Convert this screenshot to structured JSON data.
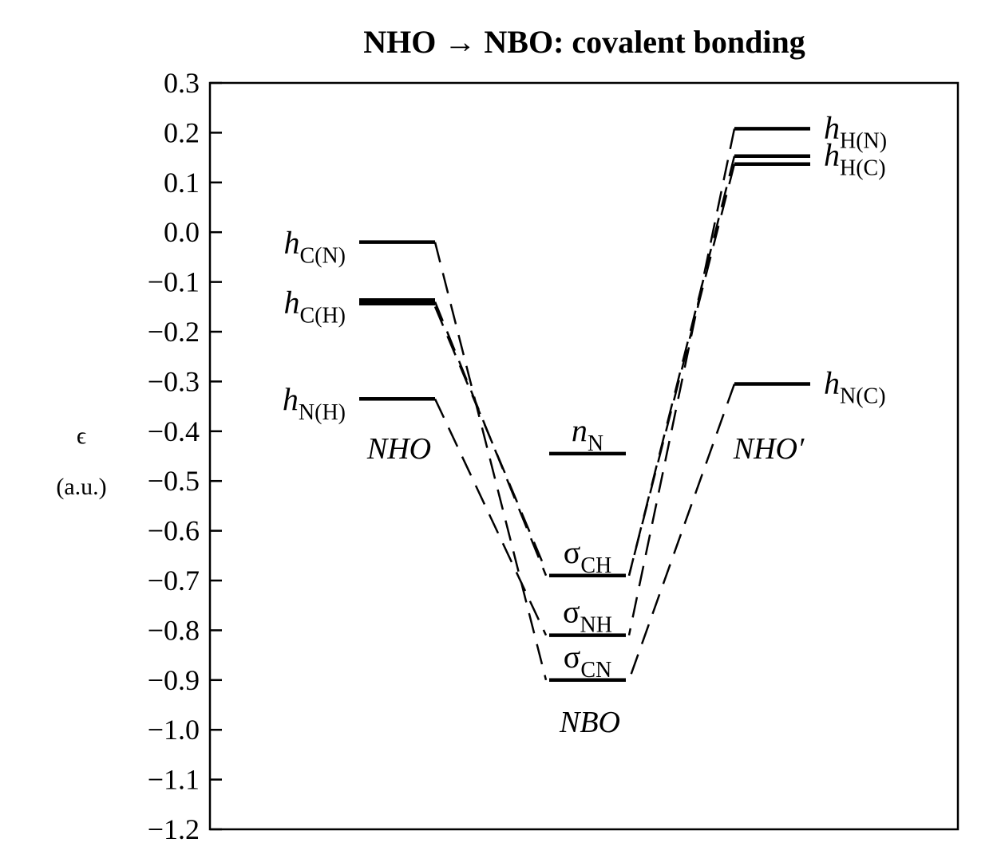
{
  "chart_data": {
    "type": "energy-level-diagram",
    "title": "NHO → NBO: covalent bonding",
    "ylabel_symbol": "ϵ",
    "ylabel_unit": "(a.u.)",
    "ylim": [
      -1.2,
      0.3
    ],
    "y_ticks": [
      0.3,
      0.2,
      0.1,
      0.0,
      -0.1,
      -0.2,
      -0.3,
      -0.4,
      -0.5,
      -0.6,
      -0.7,
      -0.8,
      -0.9,
      -1.0,
      -1.1,
      -1.2
    ],
    "y_tick_labels": [
      "0.3",
      "0.2",
      "0.1",
      "0.0",
      "−0.1",
      "−0.2",
      "−0.3",
      "−0.4",
      "−0.5",
      "−0.6",
      "−0.7",
      "−0.8",
      "−0.9",
      "−1.0",
      "−1.1",
      "−1.2"
    ],
    "columns": [
      {
        "name": "NHO",
        "label": "NHO"
      },
      {
        "name": "NBO",
        "label": "NBO"
      },
      {
        "name": "NHO'",
        "label": "NHO′"
      }
    ],
    "levels": [
      {
        "column": "NHO",
        "symbol": "h",
        "sub": "C(N)",
        "value": -0.02
      },
      {
        "column": "NHO",
        "symbol": "h",
        "sub": "C(H)",
        "value": -0.14,
        "bold": true
      },
      {
        "column": "NHO",
        "symbol": "h",
        "sub": "N(H)",
        "value": -0.335
      },
      {
        "column": "NBO",
        "symbol": "n",
        "sub": "N",
        "value": -0.445
      },
      {
        "column": "NBO",
        "symbol": "σ",
        "sub": "CH",
        "value": -0.69
      },
      {
        "column": "NBO",
        "symbol": "σ",
        "sub": "NH",
        "value": -0.81
      },
      {
        "column": "NBO",
        "symbol": "σ",
        "sub": "CN",
        "value": -0.9
      },
      {
        "column": "NHO'",
        "symbol": "h",
        "sub": "H(N)",
        "value": 0.208
      },
      {
        "column": "NHO'",
        "symbol": "h",
        "sub": "H(C)",
        "value": 0.153
      },
      {
        "column": "NHO'",
        "symbol": "",
        "sub": "",
        "value": 0.137
      },
      {
        "column": "NHO'",
        "symbol": "h",
        "sub": "N(C)",
        "value": -0.305
      }
    ],
    "connectors": [
      {
        "from": "NHO",
        "from_value": -0.02,
        "to": "NBO",
        "to_value": -0.9
      },
      {
        "from": "NHO",
        "from_value": -0.14,
        "to": "NBO",
        "to_value": -0.69
      },
      {
        "from": "NHO",
        "from_value": -0.14,
        "to": "NBO",
        "to_value": -0.69
      },
      {
        "from": "NHO",
        "from_value": -0.335,
        "to": "NBO",
        "to_value": -0.81
      },
      {
        "from": "NHO'",
        "from_value": 0.208,
        "to": "NBO",
        "to_value": -0.81
      },
      {
        "from": "NHO'",
        "from_value": 0.153,
        "to": "NBO",
        "to_value": -0.69
      },
      {
        "from": "NHO'",
        "from_value": 0.137,
        "to": "NBO",
        "to_value": -0.69
      },
      {
        "from": "NHO'",
        "from_value": -0.305,
        "to": "NBO",
        "to_value": -0.9
      }
    ],
    "grid": false,
    "colors": {
      "ink": "#000000",
      "background": "#ffffff"
    }
  }
}
